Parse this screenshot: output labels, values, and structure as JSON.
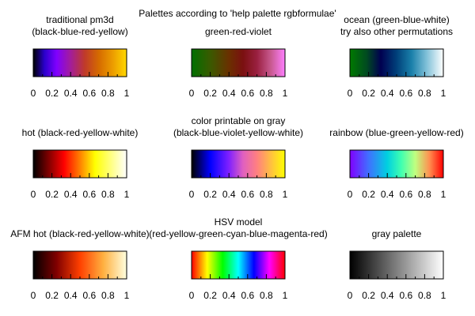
{
  "title": "Palettes according to 'help palette rgbformulae'",
  "tick_labels": [
    "0",
    "0.2",
    "0.4",
    "0.6",
    "0.8",
    "1"
  ],
  "chart_data": [
    {
      "type": "heatmap",
      "title": [
        "traditional pm3d",
        "(black-blue-red-yellow)"
      ],
      "x": [
        0,
        0.2,
        0.4,
        0.6,
        0.8,
        1
      ],
      "xlim": [
        0,
        1
      ],
      "colors": [
        {
          "pos": 0,
          "color": "#000000"
        },
        {
          "pos": 0.12,
          "color": "#2a00cc"
        },
        {
          "pos": 0.25,
          "color": "#8000ff"
        },
        {
          "pos": 0.4,
          "color": "#a31d9a"
        },
        {
          "pos": 0.55,
          "color": "#bf3a2a"
        },
        {
          "pos": 0.7,
          "color": "#d56a00"
        },
        {
          "pos": 0.85,
          "color": "#ec9c00"
        },
        {
          "pos": 1,
          "color": "#ffd800"
        }
      ]
    },
    {
      "type": "heatmap",
      "title": [
        "green-red-violet"
      ],
      "x": [
        0,
        0.2,
        0.4,
        0.6,
        0.8,
        1
      ],
      "xlim": [
        0,
        1
      ],
      "colors": [
        {
          "pos": 0,
          "color": "#007000"
        },
        {
          "pos": 0.2,
          "color": "#3a5a00"
        },
        {
          "pos": 0.4,
          "color": "#6a3000"
        },
        {
          "pos": 0.55,
          "color": "#7a1010"
        },
        {
          "pos": 0.7,
          "color": "#9a2040"
        },
        {
          "pos": 0.85,
          "color": "#c85a90"
        },
        {
          "pos": 1,
          "color": "#ff80ff"
        }
      ]
    },
    {
      "type": "heatmap",
      "title": [
        "ocean (green-blue-white)",
        "try also other permutations"
      ],
      "x": [
        0,
        0.2,
        0.4,
        0.6,
        0.8,
        1
      ],
      "xlim": [
        0,
        1
      ],
      "colors": [
        {
          "pos": 0,
          "color": "#007a00"
        },
        {
          "pos": 0.18,
          "color": "#004a20"
        },
        {
          "pos": 0.33,
          "color": "#000050"
        },
        {
          "pos": 0.5,
          "color": "#00407a"
        },
        {
          "pos": 0.66,
          "color": "#1a80aa"
        },
        {
          "pos": 0.82,
          "color": "#80c0d8"
        },
        {
          "pos": 1,
          "color": "#ffffff"
        }
      ]
    },
    {
      "type": "heatmap",
      "title": [
        "hot (black-red-yellow-white)"
      ],
      "x": [
        0,
        0.2,
        0.4,
        0.6,
        0.8,
        1
      ],
      "xlim": [
        0,
        1
      ],
      "colors": [
        {
          "pos": 0,
          "color": "#000000"
        },
        {
          "pos": 0.33,
          "color": "#ff0000"
        },
        {
          "pos": 0.5,
          "color": "#ff8000"
        },
        {
          "pos": 0.66,
          "color": "#ffff00"
        },
        {
          "pos": 1,
          "color": "#ffffff"
        }
      ]
    },
    {
      "type": "heatmap",
      "title": [
        "color printable on gray",
        "(black-blue-violet-yellow-white)"
      ],
      "x": [
        0,
        0.2,
        0.4,
        0.6,
        0.8,
        1
      ],
      "xlim": [
        0,
        1
      ],
      "colors": [
        {
          "pos": 0,
          "color": "#000000"
        },
        {
          "pos": 0.2,
          "color": "#0000ff"
        },
        {
          "pos": 0.4,
          "color": "#8020ff"
        },
        {
          "pos": 0.55,
          "color": "#e060c0"
        },
        {
          "pos": 0.7,
          "color": "#ff8080"
        },
        {
          "pos": 0.85,
          "color": "#ffc040"
        },
        {
          "pos": 1,
          "color": "#ffff00"
        }
      ]
    },
    {
      "type": "heatmap",
      "title": [
        "rainbow (blue-green-yellow-red)"
      ],
      "x": [
        0,
        0.2,
        0.4,
        0.6,
        0.8,
        1
      ],
      "xlim": [
        0,
        1
      ],
      "colors": [
        {
          "pos": 0,
          "color": "#8000ff"
        },
        {
          "pos": 0.2,
          "color": "#4070ff"
        },
        {
          "pos": 0.4,
          "color": "#00d0e0"
        },
        {
          "pos": 0.55,
          "color": "#40ffb0"
        },
        {
          "pos": 0.7,
          "color": "#c0ff80"
        },
        {
          "pos": 0.85,
          "color": "#ff9050"
        },
        {
          "pos": 1,
          "color": "#ff0000"
        }
      ]
    },
    {
      "type": "heatmap",
      "title": [
        "AFM hot (black-red-yellow-white)"
      ],
      "x": [
        0,
        0.2,
        0.4,
        0.6,
        0.8,
        1
      ],
      "xlim": [
        0,
        1
      ],
      "colors": [
        {
          "pos": 0,
          "color": "#000000"
        },
        {
          "pos": 0.25,
          "color": "#800000"
        },
        {
          "pos": 0.5,
          "color": "#ff4000"
        },
        {
          "pos": 0.75,
          "color": "#ffb040"
        },
        {
          "pos": 1,
          "color": "#ffffe0"
        }
      ]
    },
    {
      "type": "heatmap",
      "title": [
        "HSV model",
        "(red-yellow-green-cyan-blue-magenta-red)"
      ],
      "x": [
        0,
        0.2,
        0.4,
        0.6,
        0.8,
        1
      ],
      "xlim": [
        0,
        1
      ],
      "colors": [
        {
          "pos": 0,
          "color": "#ff0000"
        },
        {
          "pos": 0.167,
          "color": "#ffff00"
        },
        {
          "pos": 0.333,
          "color": "#00ff00"
        },
        {
          "pos": 0.5,
          "color": "#00ffff"
        },
        {
          "pos": 0.667,
          "color": "#0000ff"
        },
        {
          "pos": 0.833,
          "color": "#ff00ff"
        },
        {
          "pos": 1,
          "color": "#ff0000"
        }
      ]
    },
    {
      "type": "heatmap",
      "title": [
        "gray palette"
      ],
      "x": [
        0,
        0.2,
        0.4,
        0.6,
        0.8,
        1
      ],
      "xlim": [
        0,
        1
      ],
      "colors": [
        {
          "pos": 0,
          "color": "#000000"
        },
        {
          "pos": 1,
          "color": "#ffffff"
        }
      ]
    }
  ]
}
